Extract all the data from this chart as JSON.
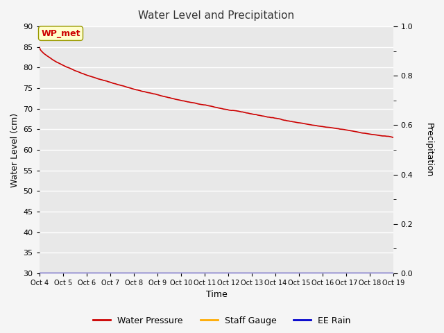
{
  "title": "Water Level and Precipitation",
  "xlabel": "Time",
  "ylabel_left": "Water Level (cm)",
  "ylabel_right": "Precipitation",
  "annotation_text": "WP_met",
  "annotation_color": "#cc0000",
  "annotation_bg": "#ffffcc",
  "annotation_border": "#999900",
  "x_labels": [
    "Oct 4",
    "Oct 5",
    "Oct 6",
    "Oct 7",
    "Oct 8",
    "Oct 9",
    "Oct 10",
    "Oct 11",
    "Oct 12",
    "Oct 13",
    "Oct 14",
    "Oct 15",
    "Oct 16",
    "Oct 17",
    "Oct 18",
    "Oct 19"
  ],
  "ylim_left": [
    30,
    90
  ],
  "ylim_right": [
    0.0,
    1.0
  ],
  "yticks_left": [
    30,
    35,
    40,
    45,
    50,
    55,
    60,
    65,
    70,
    75,
    80,
    85,
    90
  ],
  "yticks_right_major": [
    0.0,
    0.2,
    0.4,
    0.6,
    0.8,
    1.0
  ],
  "yticks_right_minor": [
    0.1,
    0.3,
    0.5,
    0.7,
    0.9
  ],
  "water_pressure_color": "#cc0000",
  "staff_gauge_color": "#ffaa00",
  "ee_rain_color": "#0000cc",
  "plot_bg_color": "#e8e8e8",
  "fig_bg_color": "#f5f5f5",
  "grid_color": "#ffffff",
  "line_width": 1.2,
  "legend_items": [
    "Water Pressure",
    "Staff Gauge",
    "EE Rain"
  ],
  "legend_colors": [
    "#cc0000",
    "#ffaa00",
    "#0000cc"
  ],
  "title_fontsize": 11,
  "axis_label_fontsize": 9,
  "tick_fontsize": 8
}
